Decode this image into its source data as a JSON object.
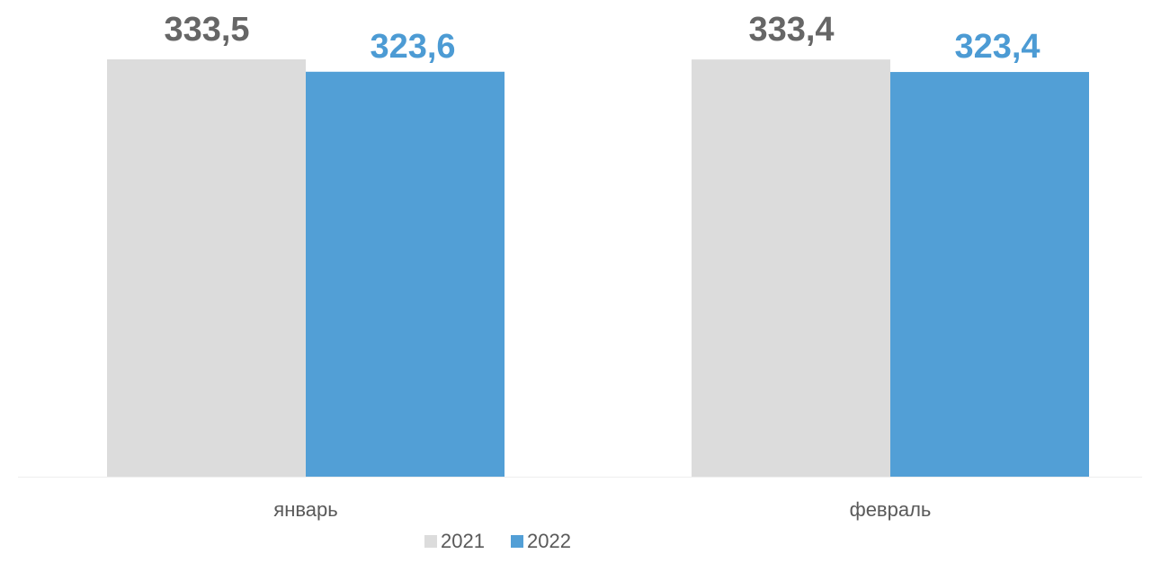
{
  "chart_data": {
    "type": "bar",
    "categories": [
      "январь",
      "февраль"
    ],
    "series": [
      {
        "name": "2021",
        "values": [
          333.5,
          333.4
        ],
        "labels": [
          "333,5",
          "333,4"
        ],
        "color": "#dcdcdc",
        "label_color": "#666666"
      },
      {
        "name": "2022",
        "values": [
          323.6,
          323.4
        ],
        "labels": [
          "323,6",
          "323,4"
        ],
        "color": "#529fd6",
        "label_color": "#4c9bd4"
      }
    ],
    "ylim": [
      0,
      333.5
    ],
    "grid": false,
    "legend_position": "bottom"
  }
}
